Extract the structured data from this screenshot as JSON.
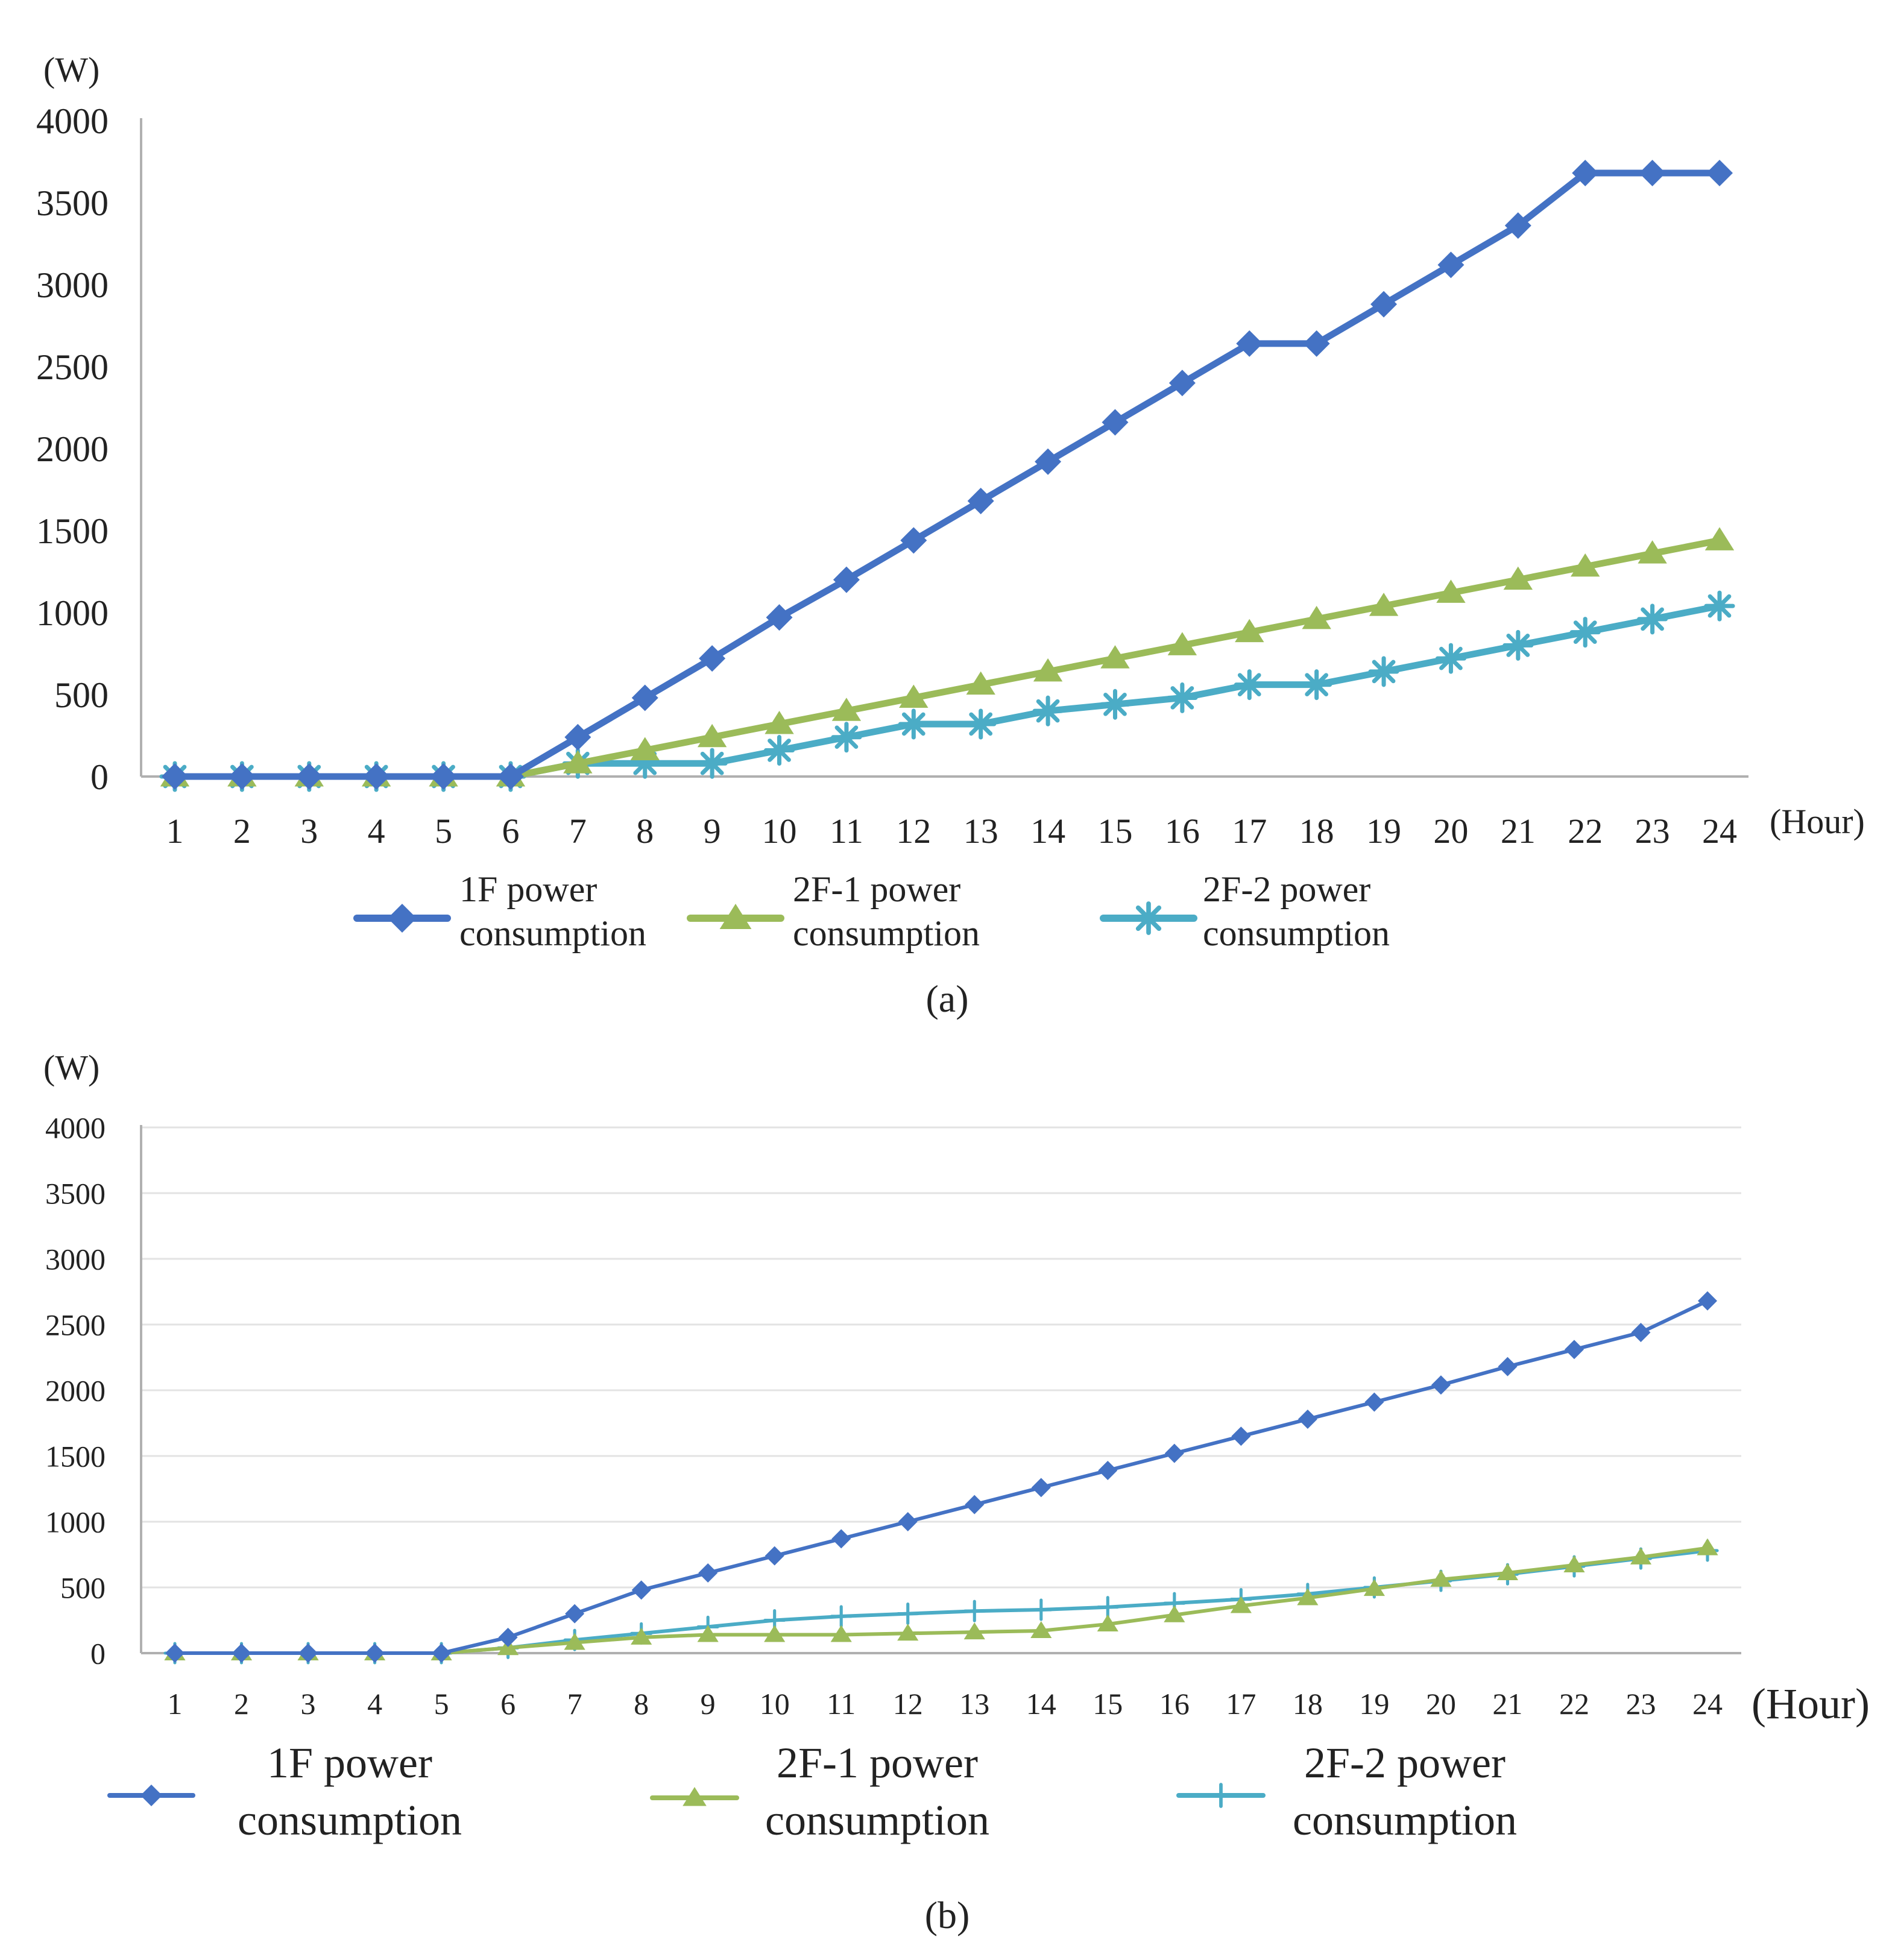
{
  "colors": {
    "series_1f": "#4472C4",
    "series_2f1": "#9BBB59",
    "series_2f2": "#4BACC6",
    "axis": "#b0b0b0",
    "grid": "#e3e3e3",
    "text": "#222222"
  },
  "chart_data": [
    {
      "type": "line",
      "caption": "(a)",
      "y_unit": "(W)",
      "x_unit": "(Hour)",
      "ylim": [
        0,
        4000
      ],
      "y_ticks": [
        "0",
        "500",
        "1000",
        "1500",
        "2000",
        "2500",
        "3000",
        "3500",
        "4000"
      ],
      "grid": false,
      "legend_position": "bottom",
      "x": [
        "1",
        "2",
        "3",
        "4",
        "5",
        "6",
        "7",
        "8",
        "9",
        "10",
        "11",
        "12",
        "13",
        "14",
        "15",
        "16",
        "17",
        "18",
        "19",
        "20",
        "21",
        "22",
        "23",
        "24"
      ],
      "series": [
        {
          "name_line1": "1F power",
          "name_line2": "consumption",
          "marker": "diamond",
          "values": [
            0,
            0,
            0,
            0,
            0,
            0,
            240,
            480,
            720,
            970,
            1200,
            1440,
            1680,
            1920,
            2160,
            2400,
            2640,
            2640,
            2880,
            3120,
            3360,
            3680,
            3680,
            3680
          ]
        },
        {
          "name_line1": "2F-1 power",
          "name_line2": "consumption",
          "marker": "triangle",
          "values": [
            0,
            0,
            0,
            0,
            0,
            0,
            80,
            160,
            240,
            320,
            400,
            480,
            560,
            640,
            720,
            800,
            880,
            960,
            1040,
            1120,
            1200,
            1280,
            1360,
            1440
          ]
        },
        {
          "name_line1": "2F-2 power",
          "name_line2": "consumption",
          "marker": "star",
          "values": [
            0,
            0,
            0,
            0,
            0,
            0,
            80,
            80,
            80,
            160,
            240,
            320,
            320,
            400,
            440,
            480,
            560,
            560,
            640,
            720,
            800,
            880,
            960,
            1040
          ]
        }
      ]
    },
    {
      "type": "line",
      "caption": "(b)",
      "y_unit": "(W)",
      "x_unit": "(Hour)",
      "ylim": [
        0,
        4000
      ],
      "y_ticks": [
        "0",
        "500",
        "1000",
        "1500",
        "2000",
        "2500",
        "3000",
        "3500",
        "4000"
      ],
      "grid": true,
      "legend_position": "bottom",
      "x": [
        "1",
        "2",
        "3",
        "4",
        "5",
        "6",
        "7",
        "8",
        "9",
        "10",
        "11",
        "12",
        "13",
        "14",
        "15",
        "16",
        "17",
        "18",
        "19",
        "20",
        "21",
        "22",
        "23",
        "24"
      ],
      "series": [
        {
          "name_line1": "1F power",
          "name_line2": "consumption",
          "marker": "diamond",
          "values": [
            0,
            0,
            0,
            0,
            0,
            120,
            300,
            480,
            610,
            740,
            870,
            1000,
            1130,
            1260,
            1390,
            1520,
            1650,
            1780,
            1910,
            2040,
            2180,
            2310,
            2440,
            2680
          ]
        },
        {
          "name_line1": "2F-1 power",
          "name_line2": "consumption",
          "marker": "triangle",
          "values": [
            0,
            0,
            0,
            0,
            0,
            40,
            80,
            120,
            140,
            140,
            140,
            150,
            160,
            170,
            220,
            290,
            360,
            420,
            490,
            560,
            610,
            670,
            730,
            800
          ]
        },
        {
          "name_line1": "2F-2 power",
          "name_line2": "consumption",
          "marker": "plus",
          "values": [
            0,
            0,
            0,
            0,
            0,
            40,
            100,
            150,
            200,
            250,
            280,
            300,
            320,
            330,
            350,
            380,
            410,
            450,
            500,
            550,
            600,
            660,
            720,
            780
          ]
        }
      ]
    }
  ]
}
